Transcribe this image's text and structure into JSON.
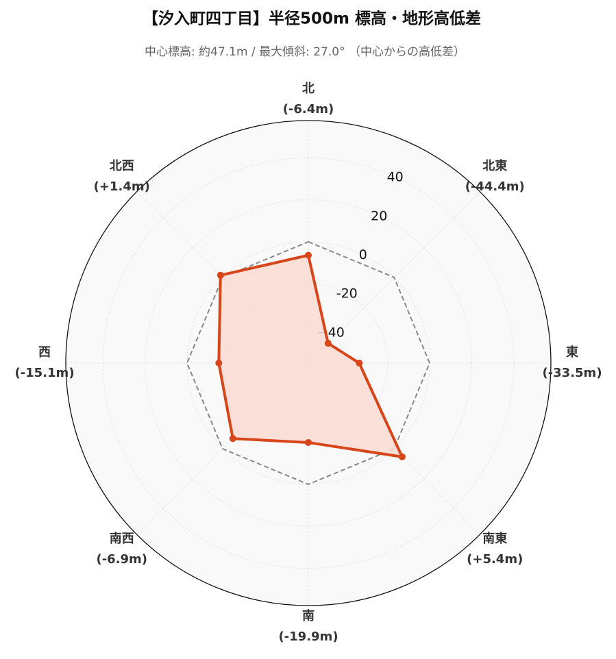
{
  "chart_data": {
    "type": "radar",
    "title": "【汐入町四丁目】半径500m 標高・地形高低差",
    "subtitle": "中心標高: 約47.1m / 最大傾斜: 27.0° （中心からの高低差）",
    "categories": [
      "北",
      "北東",
      "東",
      "南東",
      "南",
      "南西",
      "西",
      "北西"
    ],
    "values": [
      -6.4,
      -44.4,
      -33.5,
      5.4,
      -19.9,
      -6.9,
      -15.1,
      1.4
    ],
    "value_labels": [
      "(-6.4m)",
      "(-44.4m)",
      "(-33.5m)",
      "(+5.4m)",
      "(-19.9m)",
      "(-6.9m)",
      "(-15.1m)",
      "(+1.4m)"
    ],
    "color": "#d84519",
    "fill_color": "#fcdcd3",
    "reference": 0,
    "reference_color": "#888888",
    "ylim": [
      -57.7,
      57.7
    ],
    "yticks": [
      -40,
      -20,
      0,
      20,
      40,
      {
        "value": -40,
        "label": "−40"
      }
    ],
    "grid": true
  }
}
